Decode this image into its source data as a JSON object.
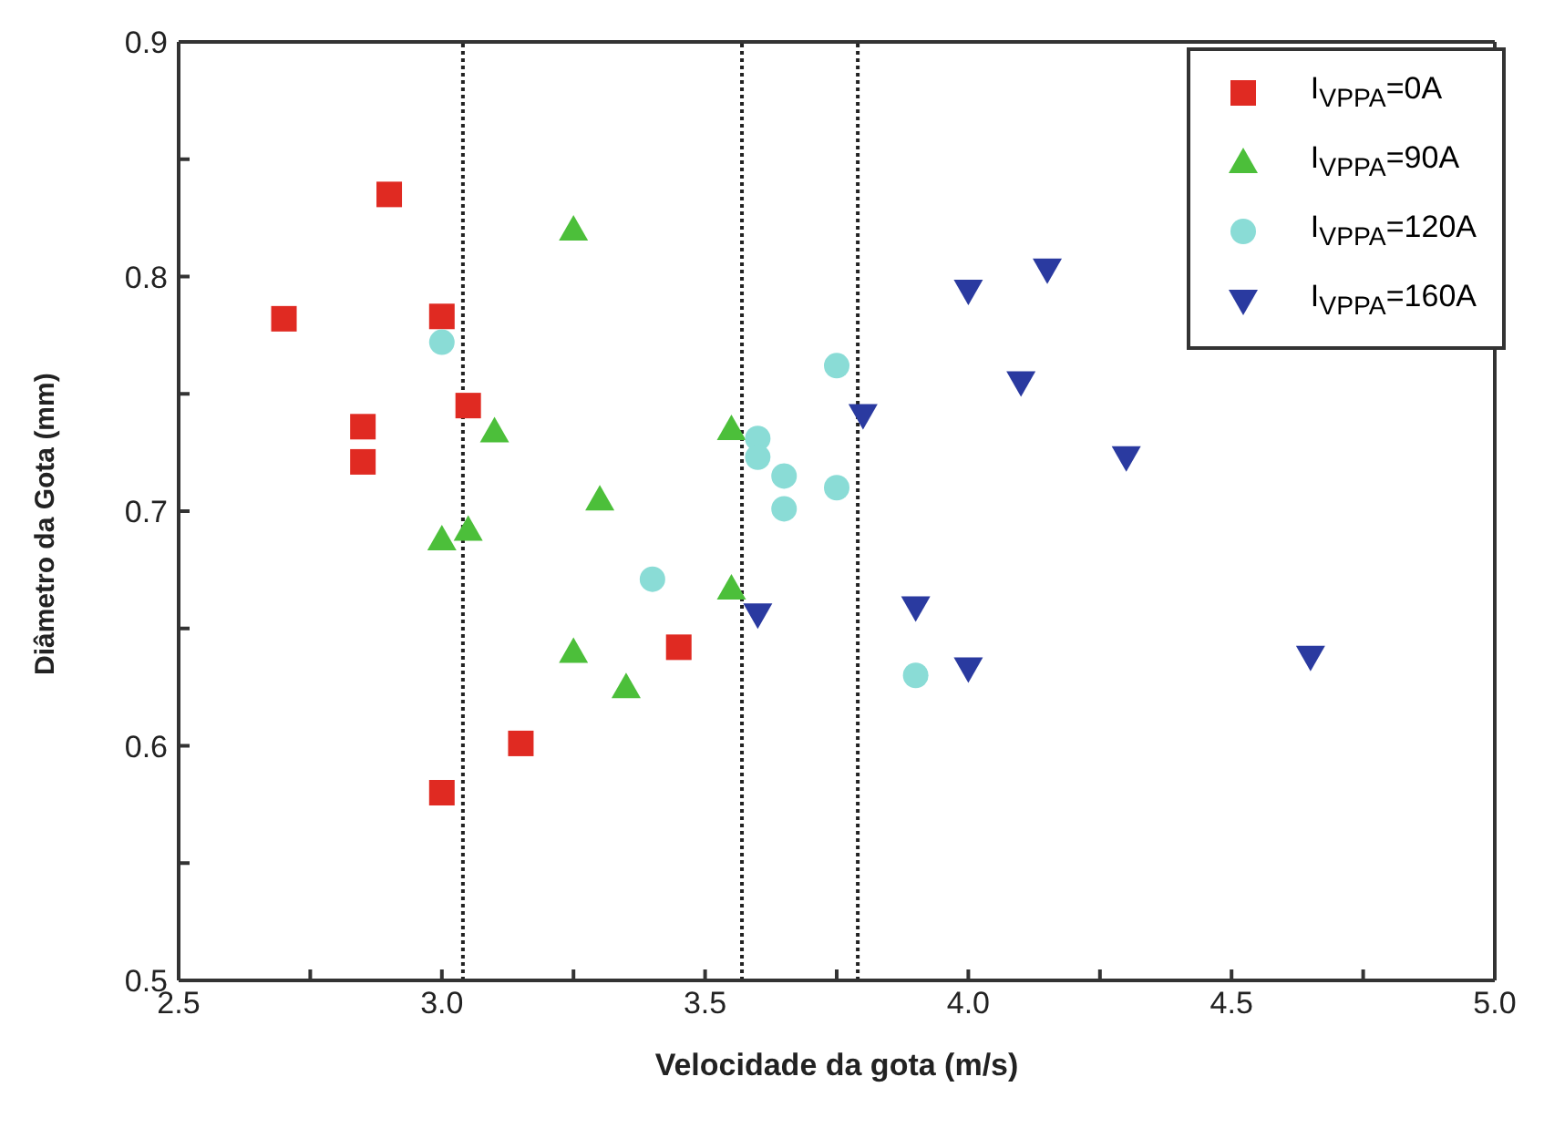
{
  "chart_data": {
    "type": "scatter",
    "xlabel": "Velocidade da gota (m/s)",
    "ylabel": "Diâmetro da Gota (mm)",
    "xlim": [
      2.5,
      5.0
    ],
    "ylim": [
      0.5,
      0.9
    ],
    "xticks": [
      {
        "value": 2.5,
        "label": "2.5"
      },
      {
        "value": 2.75,
        "label": null
      },
      {
        "value": 3,
        "label": "3.0"
      },
      {
        "value": 3.25,
        "label": null
      },
      {
        "value": 3.5,
        "label": "3.5"
      },
      {
        "value": 3.75,
        "label": null
      },
      {
        "value": 4,
        "label": "4.0"
      },
      {
        "value": 4.25,
        "label": null
      },
      {
        "value": 4.5,
        "label": "4.5"
      },
      {
        "value": 4.75,
        "label": null
      },
      {
        "value": 5,
        "label": "5.0"
      }
    ],
    "yticks": [
      {
        "value": 0.5,
        "label": "0.5"
      },
      {
        "value": 0.55,
        "label": null
      },
      {
        "value": 0.6,
        "label": "0.6"
      },
      {
        "value": 0.65,
        "label": null
      },
      {
        "value": 0.7,
        "label": "0.7"
      },
      {
        "value": 0.75,
        "label": null
      },
      {
        "value": 0.8,
        "label": "0.8"
      },
      {
        "value": 0.85,
        "label": null
      },
      {
        "value": 0.9,
        "label": "0.9"
      }
    ],
    "grid": false,
    "legend": "top right",
    "ref_lines": [
      {
        "axis": "x",
        "value": 3.04,
        "color": "#222222",
        "line_style": "dotted"
      },
      {
        "axis": "x",
        "value": 3.57,
        "color": "#222222",
        "line_style": "dotted"
      },
      {
        "axis": "x",
        "value": 3.79,
        "color": "#222222",
        "line_style": "dotted"
      }
    ],
    "series": [
      {
        "name": "I$_{VPPA}$=0A",
        "color": "#e02a22",
        "marker": "square",
        "x": [
          2.7,
          2.9,
          3.0,
          2.85,
          2.85,
          3.05,
          3.45,
          3.15,
          3.0
        ],
        "values": [
          0.782,
          0.835,
          0.783,
          0.736,
          0.721,
          0.745,
          0.642,
          0.601,
          0.58
        ]
      },
      {
        "name": "I$_{VPPA}$=90A",
        "color": "#4cbf3a",
        "marker": "triangle",
        "x": [
          3.25,
          3.1,
          3.55,
          3.3,
          3.0,
          3.05,
          3.55,
          3.25,
          3.35
        ],
        "values": [
          0.82,
          0.734,
          0.735,
          0.705,
          0.688,
          0.692,
          0.667,
          0.64,
          0.625
        ]
      },
      {
        "name": "I$_{VPPA}$=120A",
        "color": "#8adcd6",
        "marker": "circle",
        "x": [
          3.0,
          3.75,
          3.6,
          3.6,
          3.65,
          3.65,
          3.75,
          3.4,
          3.9
        ],
        "values": [
          0.772,
          0.762,
          0.731,
          0.723,
          0.715,
          0.701,
          0.71,
          0.671,
          0.63
        ]
      },
      {
        "name": "I$_{VPPA}$=160A",
        "color": "#2a3aa0",
        "marker": "triangle-down",
        "x": [
          4.0,
          4.15,
          4.1,
          3.8,
          4.3,
          3.6,
          3.9,
          4.0,
          4.65
        ],
        "values": [
          0.794,
          0.803,
          0.755,
          0.741,
          0.723,
          0.656,
          0.659,
          0.633,
          0.638
        ]
      }
    ]
  }
}
